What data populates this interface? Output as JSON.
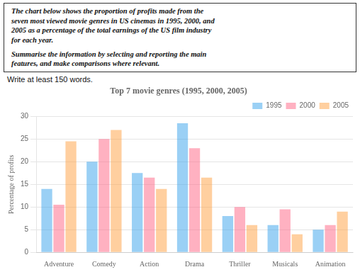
{
  "chart_data": {
    "type": "bar",
    "title": "Top 7 movie genres (1995, 2000, 2005)",
    "annotations": [
      [
        "The chart below shows the proportion of profits made from the",
        "seven most viewed movie genres in US cinemas in 1995, 2000, and",
        "2005 as a percentage of the total earnings of the US film industry",
        "for each year."
      ],
      [
        "Summarise the information by selecting and reporting the main",
        "features, and make comparisons where relevant."
      ]
    ],
    "subtitle": "Write at least 150 words.",
    "ylabel": "Percentage of profits",
    "categories": [
      "Adventure",
      "Comedy",
      "Action",
      "Drama",
      "Thriller",
      "Musicals",
      "Animation"
    ],
    "series": [
      {
        "name": "1995",
        "values": [
          14,
          20,
          17.5,
          28.5,
          8,
          6,
          5
        ]
      },
      {
        "name": "2000",
        "values": [
          10.5,
          25,
          16.5,
          23,
          10,
          9.5,
          6
        ]
      },
      {
        "name": "2005",
        "values": [
          24.5,
          27,
          14,
          16.5,
          6,
          4,
          9
        ]
      }
    ],
    "ylim": [
      0,
      30
    ],
    "yticks": [
      0,
      5,
      10,
      15,
      20,
      25,
      30
    ],
    "grid": true,
    "legend": "upper right"
  }
}
